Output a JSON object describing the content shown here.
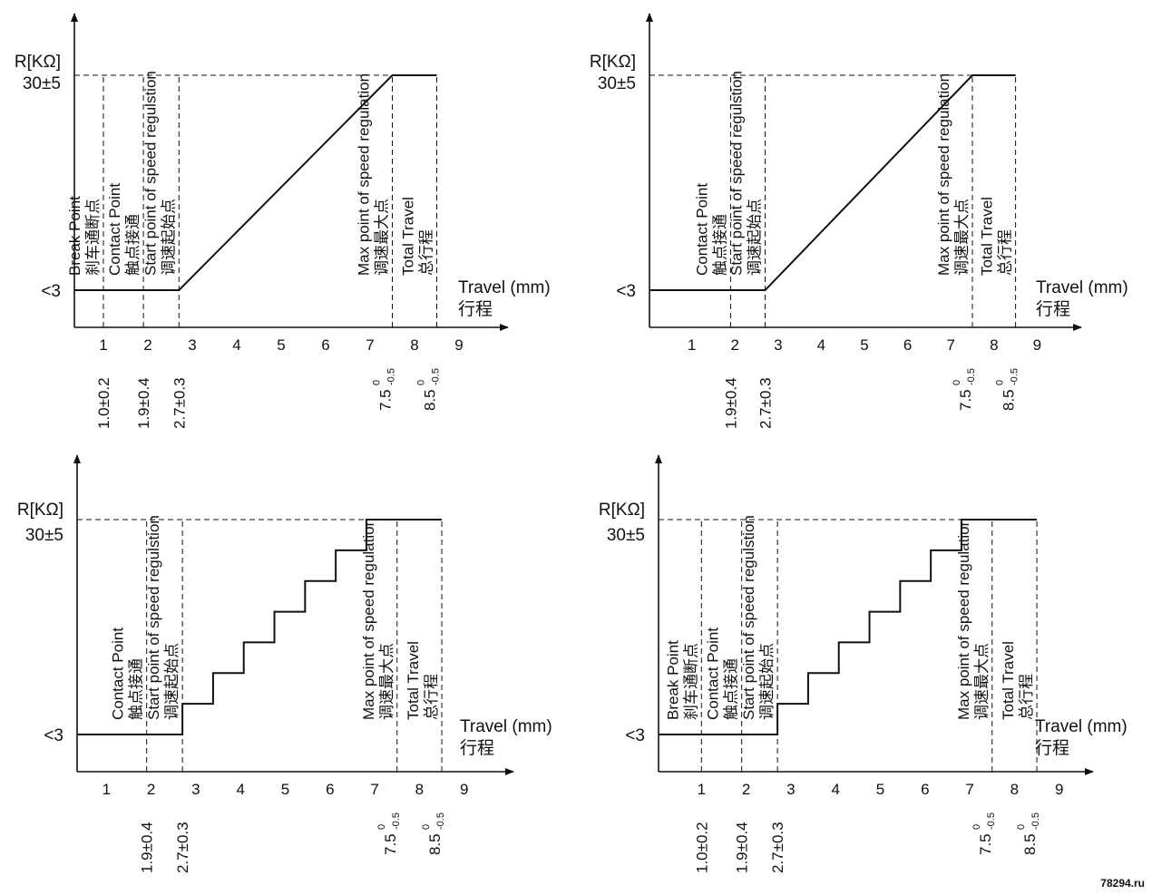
{
  "watermark": "78294.ru",
  "panels": [
    {
      "id": "tl",
      "profile": "linear",
      "y_label": "R[KΩ]",
      "y_top_label": "30±5",
      "y_bottom_label": "<3",
      "x_label": "Travel (mm)",
      "x_label_cn": "行程",
      "ticks": [
        "1",
        "2",
        "3",
        "4",
        "5",
        "6",
        "7",
        "8",
        "9"
      ],
      "markers": [
        {
          "x": 1.0,
          "lines": [
            "Break Point",
            "刹车通断点"
          ],
          "dim": "1.0±0.2"
        },
        {
          "x": 1.9,
          "lines": [
            "Contact Point",
            "触点接通"
          ],
          "dim": "1.9±0.4"
        },
        {
          "x": 2.7,
          "lines": [
            "Start point of speed regulstion",
            "调速起始点"
          ],
          "dim": "2.7±0.3"
        },
        {
          "x": 7.5,
          "lines": [
            "Max point of speed regulation",
            "调速最大点"
          ],
          "dim_base": "7.5",
          "dim_sup": "0",
          "dim_sub": "-0.5"
        },
        {
          "x": 8.5,
          "lines": [
            "Total Travel",
            "总行程"
          ],
          "dim_base": "8.5",
          "dim_sup": "0",
          "dim_sub": "-0.5"
        }
      ]
    },
    {
      "id": "tr",
      "profile": "linear",
      "y_label": "R[KΩ]",
      "y_top_label": "30±5",
      "y_bottom_label": "<3",
      "x_label": "Travel (mm)",
      "x_label_cn": "行程",
      "ticks": [
        "1",
        "2",
        "3",
        "4",
        "5",
        "6",
        "7",
        "8",
        "9"
      ],
      "markers": [
        {
          "x": 1.9,
          "lines": [
            "Contact Point",
            "触点接通"
          ],
          "dim": "1.9±0.4"
        },
        {
          "x": 2.7,
          "lines": [
            "Start point of speed regulstion",
            "调速起始点"
          ],
          "dim": "2.7±0.3"
        },
        {
          "x": 7.5,
          "lines": [
            "Max point of speed regulation",
            "调速最大点"
          ],
          "dim_base": "7.5",
          "dim_sup": "0",
          "dim_sub": "-0.5"
        },
        {
          "x": 8.5,
          "lines": [
            "Total Travel",
            "总行程"
          ],
          "dim_base": "8.5",
          "dim_sup": "0",
          "dim_sub": "-0.5"
        }
      ]
    },
    {
      "id": "bl",
      "profile": "stepped",
      "y_label": "R[KΩ]",
      "y_top_label": "30±5",
      "y_bottom_label": "<3",
      "x_label": "Travel (mm)",
      "x_label_cn": "行程",
      "ticks": [
        "1",
        "2",
        "3",
        "4",
        "5",
        "6",
        "7",
        "8",
        "9"
      ],
      "markers": [
        {
          "x": 1.9,
          "lines": [
            "Contact Point",
            "触点接通"
          ],
          "dim": "1.9±0.4"
        },
        {
          "x": 2.7,
          "lines": [
            "Start point of speed regulstion",
            "调速起始点"
          ],
          "dim": "2.7±0.3"
        },
        {
          "x": 7.5,
          "lines": [
            "Max point of speed regulation",
            "调速最大点"
          ],
          "dim_base": "7.5",
          "dim_sup": "0",
          "dim_sub": "-0.5"
        },
        {
          "x": 8.5,
          "lines": [
            "Total Travel",
            "总行程"
          ],
          "dim_base": "8.5",
          "dim_sup": "0",
          "dim_sub": "-0.5"
        }
      ]
    },
    {
      "id": "br",
      "profile": "stepped",
      "y_label": "R[KΩ]",
      "y_top_label": "30±5",
      "y_bottom_label": "<3",
      "x_label": "Travel (mm)",
      "x_label_cn": "行程",
      "ticks": [
        "1",
        "2",
        "3",
        "4",
        "5",
        "6",
        "7",
        "8",
        "9"
      ],
      "markers": [
        {
          "x": 1.0,
          "lines": [
            "Break Point",
            "刹车通断点"
          ],
          "dim": "1.0±0.2"
        },
        {
          "x": 1.9,
          "lines": [
            "Contact Point",
            "触点接通"
          ],
          "dim": "1.9±0.4"
        },
        {
          "x": 2.7,
          "lines": [
            "Start point of speed regulstion",
            "调速起始点"
          ],
          "dim": "2.7±0.3"
        },
        {
          "x": 7.5,
          "lines": [
            "Max point of speed regulation",
            "调速最大点"
          ],
          "dim_base": "7.5",
          "dim_sup": "0",
          "dim_sub": "-0.5"
        },
        {
          "x": 8.5,
          "lines": [
            "Total Travel",
            "总行程"
          ],
          "dim_base": "8.5",
          "dim_sup": "0",
          "dim_sub": "-0.5"
        }
      ]
    }
  ]
}
